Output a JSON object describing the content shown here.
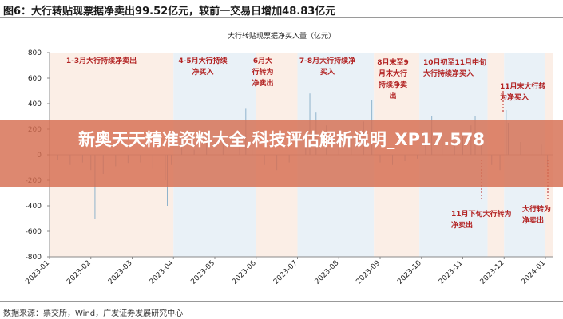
{
  "figure_title": "图6：大行转贴现票据净卖出99.52亿元，较前一交易日增加48.83亿元",
  "source": "数据来源：票交所，Wind，广发证券发展研究中心",
  "banner": "新奥天天精准资料大全,科技评估解析说明_XP17.578",
  "annotations": [
    "1-3月大行持续净卖出",
    "4-5月大行持续净买入",
    "6月大行转为净卖出",
    "7-8月大行持续净买入",
    "8月末至9月末大行持续净卖出",
    "10月初至11月中旬大行持续净买入",
    "11月末大行转为净买入",
    "11月下旬大行转为净卖出",
    "大行转为净卖出"
  ],
  "colors": {
    "sell_band": "#fbeee6",
    "buy_band": "#e9f1f7",
    "bar": "#8fb3cc",
    "annotation": "#b22222"
  },
  "chart_data": {
    "type": "bar",
    "title": "大行转贴现票据净买入量（亿元）",
    "xlabel": "",
    "ylabel": "",
    "ylim": [
      -800,
      800
    ],
    "yticks": [
      800,
      600,
      400,
      200,
      0,
      -200,
      -400,
      -600,
      -800
    ],
    "xticks": [
      "2023-01",
      "2023-02",
      "2023-03",
      "2023-04",
      "2023-05",
      "2023-06",
      "2023-07",
      "2023-08",
      "2023-09",
      "2023-10",
      "2023-11",
      "2023-12",
      "2024-01"
    ],
    "bands": [
      {
        "from": 0,
        "to": 3,
        "type": "sell"
      },
      {
        "from": 3,
        "to": 5,
        "type": "buy"
      },
      {
        "from": 5,
        "to": 6,
        "type": "sell"
      },
      {
        "from": 6,
        "to": 7.85,
        "type": "buy"
      },
      {
        "from": 7.85,
        "to": 8.95,
        "type": "sell"
      },
      {
        "from": 8.95,
        "to": 10.6,
        "type": "buy"
      },
      {
        "from": 10.6,
        "to": 11,
        "type": "sell"
      },
      {
        "from": 11,
        "to": 12,
        "type": "buy"
      },
      {
        "from": 12,
        "to": 12.2,
        "type": "sell"
      }
    ],
    "series": [
      {
        "name": "净买入量",
        "points": [
          [
            0.2,
            -40
          ],
          [
            0.5,
            -80
          ],
          [
            0.8,
            -60
          ],
          [
            1.0,
            -120
          ],
          [
            1.1,
            -500
          ],
          [
            1.15,
            -620
          ],
          [
            1.3,
            -150
          ],
          [
            1.6,
            -90
          ],
          [
            1.9,
            -70
          ],
          [
            2.2,
            -60
          ],
          [
            2.5,
            -110
          ],
          [
            2.8,
            -200
          ],
          [
            2.85,
            -400
          ],
          [
            2.95,
            -80
          ],
          [
            3.2,
            60
          ],
          [
            3.5,
            40
          ],
          [
            3.8,
            110
          ],
          [
            4.2,
            90
          ],
          [
            4.6,
            150
          ],
          [
            4.75,
            360
          ],
          [
            4.9,
            60
          ],
          [
            5.2,
            -80
          ],
          [
            5.5,
            -120
          ],
          [
            5.8,
            -60
          ],
          [
            6.2,
            130
          ],
          [
            6.3,
            480
          ],
          [
            6.45,
            330
          ],
          [
            6.7,
            230
          ],
          [
            7.0,
            120
          ],
          [
            7.3,
            160
          ],
          [
            7.6,
            260
          ],
          [
            7.8,
            430
          ],
          [
            8.0,
            -60
          ],
          [
            8.3,
            -80
          ],
          [
            8.6,
            -50
          ],
          [
            8.9,
            -30
          ],
          [
            9.1,
            80
          ],
          [
            9.25,
            300
          ],
          [
            9.5,
            120
          ],
          [
            9.8,
            100
          ],
          [
            10.0,
            150
          ],
          [
            10.2,
            230
          ],
          [
            10.3,
            300
          ],
          [
            10.45,
            180
          ],
          [
            10.7,
            -80
          ],
          [
            10.9,
            -120
          ],
          [
            11.05,
            350
          ],
          [
            11.1,
            250
          ],
          [
            11.4,
            100
          ],
          [
            11.7,
            60
          ],
          [
            11.9,
            80
          ],
          [
            12.05,
            -100
          ]
        ]
      }
    ]
  }
}
